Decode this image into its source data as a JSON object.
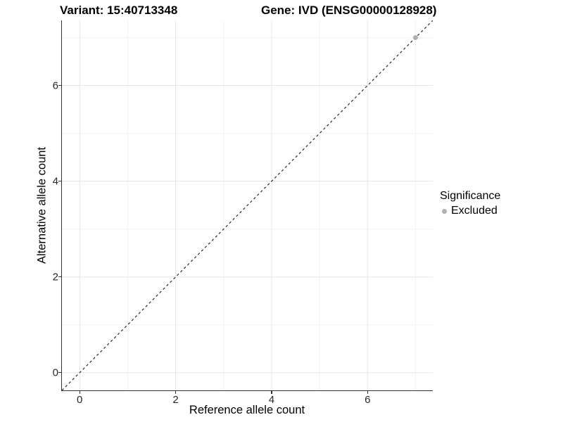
{
  "chart_data": {
    "type": "scatter",
    "title_variant": "Variant: 15:40713348",
    "title_gene": "Gene: IVD (ENSG00000128928)",
    "xlabel": "Reference allele count",
    "ylabel": "Alternative allele count",
    "xlim": [
      -0.37,
      7.36
    ],
    "ylim": [
      -0.37,
      7.36
    ],
    "x_ticks": [
      0,
      2,
      4,
      6
    ],
    "y_ticks": [
      0,
      2,
      4,
      6
    ],
    "minor_grid_x": [
      1,
      3,
      5,
      7
    ],
    "minor_grid_y": [
      1,
      3,
      5,
      7
    ],
    "grid": "on",
    "identity_line": {
      "style": "dashed",
      "slope": 1,
      "intercept": 0,
      "color": "#1a1a1a"
    },
    "points": [
      {
        "x": 7,
        "y": 7,
        "series": "Excluded"
      }
    ],
    "legend": {
      "title": "Significance",
      "position": "right",
      "items": [
        {
          "label": "Excluded",
          "color": "#b0b0b0"
        }
      ]
    },
    "colors": {
      "grid_major": "#e5e5e5",
      "grid_minor": "#f1f1f1",
      "axis_line": "#333333",
      "point": "#b0b0b0",
      "background": "#ffffff"
    }
  }
}
